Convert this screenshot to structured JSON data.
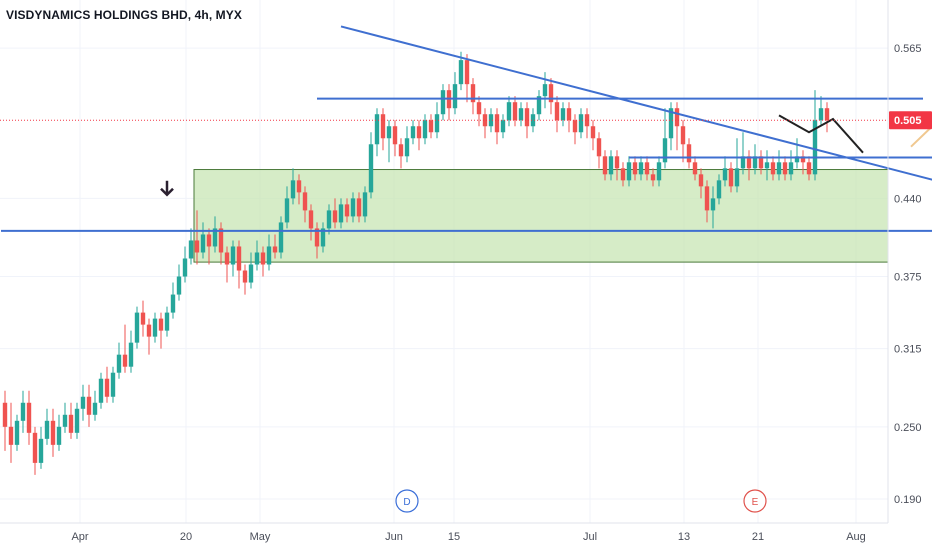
{
  "header": {
    "title": "VISDYNAMICS HOLDINGS BHD, 4h, MYX"
  },
  "colors": {
    "up": "#26a69a",
    "down": "#ef5350",
    "trendline": "#3f6fd0",
    "zone_fill": "#c8e6b4",
    "zone_border": "#4a7a3a",
    "projection_zigzag": "#222222",
    "projection_arrow": "#f0c890",
    "current_price": "#f23645",
    "event_d": "#3a6ed8",
    "event_e": "#e0524c",
    "arrow_marker": "#2a2030"
  },
  "current_price_label": "0.505",
  "event_markers": [
    {
      "label": "D",
      "color_key": "event_d"
    },
    {
      "label": "E",
      "color_key": "event_e"
    }
  ],
  "chart_data": {
    "type": "candlestick",
    "title": "VISDYNAMICS HOLDINGS BHD, 4h, MYX",
    "x_ticks": [
      "Apr",
      "20",
      "May",
      "Jun",
      "15",
      "Jul",
      "13",
      "21",
      "Aug"
    ],
    "y_ticks": [
      "0.565",
      "0.440",
      "0.375",
      "0.315",
      "0.250",
      "0.190"
    ],
    "ylim": [
      0.17,
      0.605
    ],
    "grid": true,
    "current_price": 0.505,
    "candles": [
      [
        0.27,
        0.25,
        0.28,
        0.23
      ],
      [
        0.25,
        0.235,
        0.27,
        0.22
      ],
      [
        0.235,
        0.255,
        0.26,
        0.23
      ],
      [
        0.255,
        0.27,
        0.28,
        0.245
      ],
      [
        0.27,
        0.245,
        0.28,
        0.235
      ],
      [
        0.245,
        0.22,
        0.25,
        0.21
      ],
      [
        0.22,
        0.24,
        0.25,
        0.215
      ],
      [
        0.24,
        0.255,
        0.265,
        0.235
      ],
      [
        0.255,
        0.235,
        0.265,
        0.225
      ],
      [
        0.235,
        0.25,
        0.26,
        0.23
      ],
      [
        0.25,
        0.26,
        0.27,
        0.245
      ],
      [
        0.26,
        0.245,
        0.27,
        0.24
      ],
      [
        0.245,
        0.265,
        0.27,
        0.24
      ],
      [
        0.265,
        0.275,
        0.285,
        0.255
      ],
      [
        0.275,
        0.26,
        0.285,
        0.25
      ],
      [
        0.26,
        0.27,
        0.28,
        0.255
      ],
      [
        0.27,
        0.29,
        0.295,
        0.265
      ],
      [
        0.29,
        0.275,
        0.3,
        0.27
      ],
      [
        0.275,
        0.295,
        0.3,
        0.27
      ],
      [
        0.295,
        0.31,
        0.32,
        0.29
      ],
      [
        0.31,
        0.3,
        0.335,
        0.295
      ],
      [
        0.3,
        0.32,
        0.33,
        0.295
      ],
      [
        0.32,
        0.345,
        0.35,
        0.315
      ],
      [
        0.345,
        0.335,
        0.355,
        0.325
      ],
      [
        0.335,
        0.325,
        0.34,
        0.31
      ],
      [
        0.325,
        0.34,
        0.345,
        0.32
      ],
      [
        0.34,
        0.33,
        0.345,
        0.315
      ],
      [
        0.33,
        0.345,
        0.35,
        0.325
      ],
      [
        0.345,
        0.36,
        0.37,
        0.34
      ],
      [
        0.36,
        0.375,
        0.385,
        0.355
      ],
      [
        0.375,
        0.39,
        0.4,
        0.37
      ],
      [
        0.39,
        0.405,
        0.415,
        0.385
      ],
      [
        0.405,
        0.395,
        0.43,
        0.385
      ],
      [
        0.395,
        0.41,
        0.42,
        0.39
      ],
      [
        0.41,
        0.4,
        0.415,
        0.385
      ],
      [
        0.4,
        0.415,
        0.425,
        0.395
      ],
      [
        0.415,
        0.395,
        0.42,
        0.385
      ],
      [
        0.395,
        0.385,
        0.4,
        0.37
      ],
      [
        0.385,
        0.4,
        0.405,
        0.375
      ],
      [
        0.4,
        0.38,
        0.405,
        0.365
      ],
      [
        0.38,
        0.37,
        0.385,
        0.36
      ],
      [
        0.37,
        0.385,
        0.395,
        0.365
      ],
      [
        0.385,
        0.395,
        0.405,
        0.38
      ],
      [
        0.395,
        0.385,
        0.4,
        0.375
      ],
      [
        0.385,
        0.4,
        0.41,
        0.38
      ],
      [
        0.4,
        0.395,
        0.41,
        0.39
      ],
      [
        0.395,
        0.42,
        0.425,
        0.39
      ],
      [
        0.42,
        0.44,
        0.45,
        0.415
      ],
      [
        0.44,
        0.455,
        0.465,
        0.435
      ],
      [
        0.455,
        0.445,
        0.46,
        0.435
      ],
      [
        0.445,
        0.43,
        0.45,
        0.42
      ],
      [
        0.43,
        0.415,
        0.435,
        0.405
      ],
      [
        0.415,
        0.4,
        0.42,
        0.39
      ],
      [
        0.4,
        0.415,
        0.42,
        0.395
      ],
      [
        0.415,
        0.43,
        0.435,
        0.41
      ],
      [
        0.43,
        0.42,
        0.44,
        0.415
      ],
      [
        0.42,
        0.435,
        0.44,
        0.415
      ],
      [
        0.435,
        0.425,
        0.44,
        0.42
      ],
      [
        0.425,
        0.44,
        0.445,
        0.42
      ],
      [
        0.44,
        0.425,
        0.445,
        0.42
      ],
      [
        0.425,
        0.445,
        0.45,
        0.42
      ],
      [
        0.445,
        0.485,
        0.495,
        0.44
      ],
      [
        0.485,
        0.51,
        0.515,
        0.475
      ],
      [
        0.51,
        0.49,
        0.515,
        0.48
      ],
      [
        0.49,
        0.5,
        0.505,
        0.47
      ],
      [
        0.5,
        0.485,
        0.505,
        0.475
      ],
      [
        0.485,
        0.475,
        0.49,
        0.465
      ],
      [
        0.475,
        0.49,
        0.5,
        0.47
      ],
      [
        0.49,
        0.5,
        0.505,
        0.485
      ],
      [
        0.5,
        0.49,
        0.505,
        0.48
      ],
      [
        0.49,
        0.505,
        0.51,
        0.485
      ],
      [
        0.505,
        0.495,
        0.51,
        0.49
      ],
      [
        0.495,
        0.51,
        0.52,
        0.49
      ],
      [
        0.51,
        0.53,
        0.535,
        0.505
      ],
      [
        0.53,
        0.515,
        0.535,
        0.505
      ],
      [
        0.515,
        0.535,
        0.545,
        0.51
      ],
      [
        0.535,
        0.555,
        0.562,
        0.53
      ],
      [
        0.555,
        0.535,
        0.56,
        0.52
      ],
      [
        0.535,
        0.52,
        0.54,
        0.51
      ],
      [
        0.52,
        0.51,
        0.525,
        0.5
      ],
      [
        0.51,
        0.5,
        0.515,
        0.49
      ],
      [
        0.5,
        0.51,
        0.515,
        0.495
      ],
      [
        0.51,
        0.495,
        0.515,
        0.485
      ],
      [
        0.495,
        0.505,
        0.51,
        0.49
      ],
      [
        0.505,
        0.52,
        0.525,
        0.5
      ],
      [
        0.52,
        0.505,
        0.525,
        0.5
      ],
      [
        0.505,
        0.515,
        0.52,
        0.5
      ],
      [
        0.515,
        0.5,
        0.52,
        0.49
      ],
      [
        0.5,
        0.51,
        0.515,
        0.495
      ],
      [
        0.51,
        0.525,
        0.53,
        0.505
      ],
      [
        0.525,
        0.535,
        0.545,
        0.515
      ],
      [
        0.535,
        0.52,
        0.54,
        0.51
      ],
      [
        0.52,
        0.505,
        0.525,
        0.495
      ],
      [
        0.505,
        0.515,
        0.52,
        0.5
      ],
      [
        0.515,
        0.505,
        0.52,
        0.495
      ],
      [
        0.505,
        0.495,
        0.51,
        0.485
      ],
      [
        0.495,
        0.51,
        0.515,
        0.49
      ],
      [
        0.51,
        0.5,
        0.515,
        0.49
      ],
      [
        0.5,
        0.49,
        0.505,
        0.48
      ],
      [
        0.49,
        0.475,
        0.495,
        0.465
      ],
      [
        0.475,
        0.46,
        0.48,
        0.455
      ],
      [
        0.46,
        0.475,
        0.48,
        0.455
      ],
      [
        0.475,
        0.465,
        0.48,
        0.455
      ],
      [
        0.465,
        0.455,
        0.47,
        0.45
      ],
      [
        0.455,
        0.47,
        0.475,
        0.45
      ],
      [
        0.47,
        0.46,
        0.475,
        0.455
      ],
      [
        0.46,
        0.47,
        0.475,
        0.455
      ],
      [
        0.47,
        0.46,
        0.475,
        0.455
      ],
      [
        0.46,
        0.455,
        0.465,
        0.45
      ],
      [
        0.455,
        0.47,
        0.475,
        0.45
      ],
      [
        0.47,
        0.49,
        0.515,
        0.465
      ],
      [
        0.49,
        0.515,
        0.52,
        0.48
      ],
      [
        0.515,
        0.5,
        0.52,
        0.48
      ],
      [
        0.5,
        0.485,
        0.505,
        0.47
      ],
      [
        0.485,
        0.47,
        0.49,
        0.465
      ],
      [
        0.47,
        0.46,
        0.475,
        0.455
      ],
      [
        0.46,
        0.45,
        0.465,
        0.44
      ],
      [
        0.45,
        0.43,
        0.455,
        0.42
      ],
      [
        0.43,
        0.44,
        0.45,
        0.415
      ],
      [
        0.44,
        0.455,
        0.46,
        0.435
      ],
      [
        0.455,
        0.465,
        0.475,
        0.45
      ],
      [
        0.465,
        0.45,
        0.47,
        0.445
      ],
      [
        0.45,
        0.465,
        0.49,
        0.445
      ],
      [
        0.465,
        0.475,
        0.495,
        0.46
      ],
      [
        0.475,
        0.465,
        0.48,
        0.455
      ],
      [
        0.465,
        0.475,
        0.485,
        0.46
      ],
      [
        0.475,
        0.465,
        0.48,
        0.46
      ],
      [
        0.465,
        0.47,
        0.48,
        0.455
      ],
      [
        0.47,
        0.46,
        0.475,
        0.455
      ],
      [
        0.46,
        0.47,
        0.48,
        0.455
      ],
      [
        0.47,
        0.46,
        0.475,
        0.455
      ],
      [
        0.46,
        0.47,
        0.48,
        0.455
      ],
      [
        0.47,
        0.475,
        0.49,
        0.465
      ],
      [
        0.475,
        0.47,
        0.48,
        0.46
      ],
      [
        0.47,
        0.46,
        0.475,
        0.455
      ],
      [
        0.46,
        0.505,
        0.53,
        0.455
      ],
      [
        0.505,
        0.515,
        0.525,
        0.5
      ],
      [
        0.515,
        0.505,
        0.52,
        0.495
      ]
    ],
    "drawings": {
      "support_zone": {
        "x1": 32,
        "x2": 233,
        "y_low": 0.387,
        "y_high": 0.464
      },
      "support_line": {
        "x1": 0,
        "x2": 170,
        "y": 0.413
      },
      "upper_resistance": {
        "x1": 52,
        "x2": 153,
        "y": 0.523
      },
      "mid_resistance": {
        "x1": 104,
        "x2": 179,
        "y": 0.474
      },
      "descending_trendline": {
        "x1": 56,
        "y1": 0.583,
        "x2": 182,
        "y2": 0.42
      },
      "zigzag_projection": [
        [
          129,
          0.509
        ],
        [
          134,
          0.495
        ],
        [
          138,
          0.506
        ],
        [
          143,
          0.478
        ]
      ],
      "breakout_projection": {
        "x1": 151,
        "y1": 0.483,
        "x2": 166,
        "y2": 0.555
      },
      "down_arrow_marker": {
        "x": 27,
        "y": 0.443
      },
      "event_markers_x": [
        67,
        125
      ]
    }
  }
}
